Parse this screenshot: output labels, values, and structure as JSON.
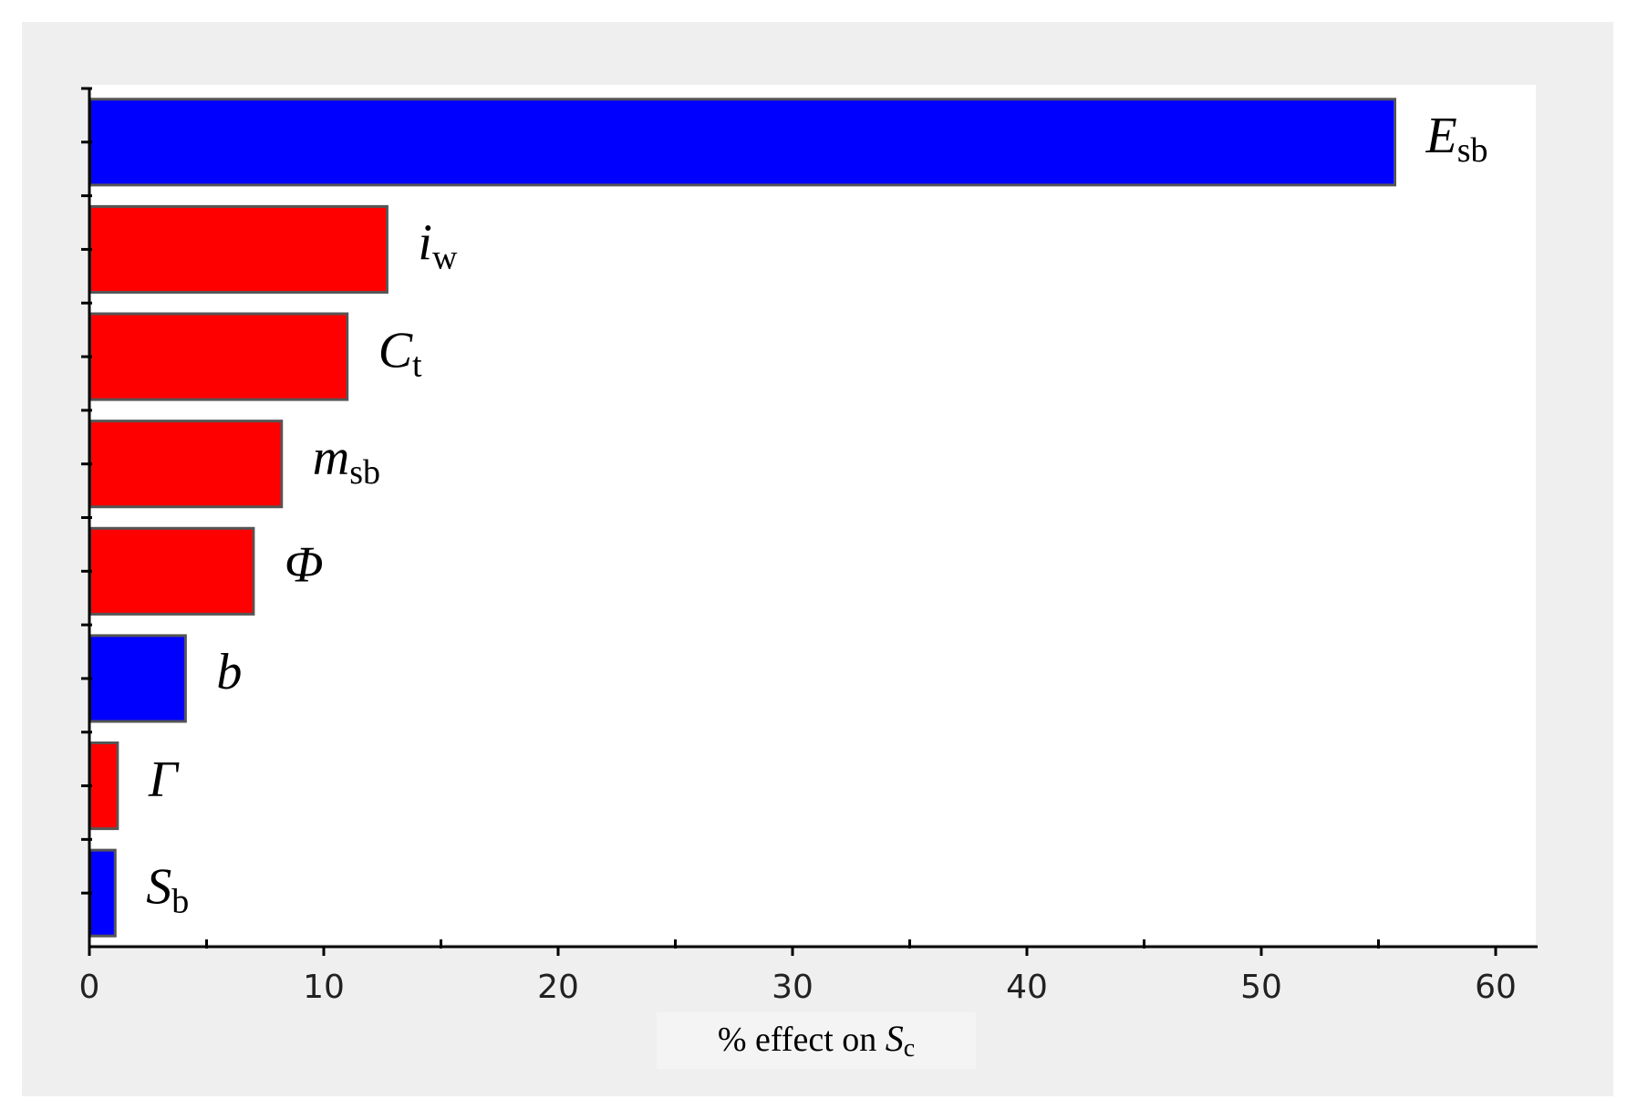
{
  "chart_data": {
    "type": "bar",
    "orientation": "horizontal",
    "categories": [
      {
        "symbol": "E",
        "subscript": "sb"
      },
      {
        "symbol": "i",
        "subscript": "w"
      },
      {
        "symbol": "C",
        "subscript": "t"
      },
      {
        "symbol": "m",
        "subscript": "sb"
      },
      {
        "symbol": "Φ",
        "subscript": ""
      },
      {
        "symbol": "b",
        "subscript": ""
      },
      {
        "symbol": "Γ",
        "subscript": ""
      },
      {
        "symbol": "S",
        "subscript": "b"
      }
    ],
    "values": [
      55.7,
      12.7,
      11.0,
      8.2,
      7.0,
      4.1,
      1.2,
      1.1
    ],
    "bar_colors": [
      "#0000ff",
      "#ff0000",
      "#ff0000",
      "#ff0000",
      "#ff0000",
      "#0000ff",
      "#ff0000",
      "#0000ff"
    ],
    "xlim": [
      0,
      62
    ],
    "xticks": [
      0,
      10,
      20,
      30,
      40,
      50,
      60
    ],
    "xlabel": {
      "text": "% effect on ",
      "symbol": "S",
      "subscript": "c"
    },
    "grid": false,
    "legend": "none"
  },
  "colors": {
    "frame_background": "#efefef",
    "plot_background": "#ffffff",
    "bar_outline": "#555555",
    "axis": "#000000"
  }
}
